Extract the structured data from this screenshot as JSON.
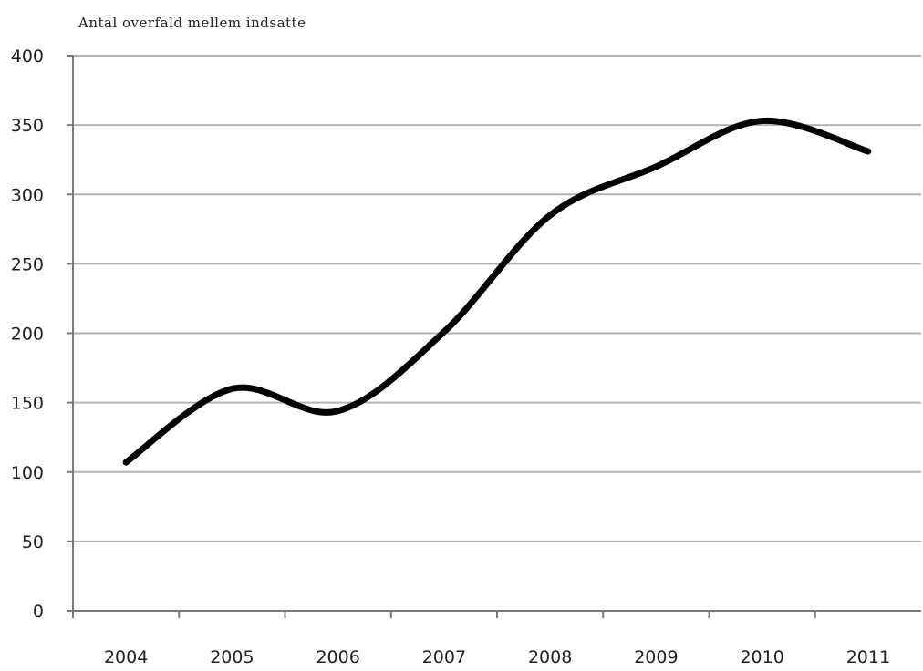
{
  "chart_data": {
    "type": "line",
    "title": "",
    "ylabel": "Antal overfald mellem indsatte",
    "xlabel": "",
    "categories": [
      "2004",
      "2005",
      "2006",
      "2007",
      "2008",
      "2009",
      "2010",
      "2011"
    ],
    "series": [
      {
        "values": [
          107,
          160,
          144,
          201,
          285,
          320,
          353,
          331
        ]
      }
    ],
    "ylim": [
      0,
      400
    ],
    "yticks": [
      "0",
      "50",
      "100",
      "150",
      "200",
      "250",
      "300",
      "350",
      "400"
    ],
    "grid": true,
    "smooth": true,
    "line_color": "#000000",
    "grid_color": "#b3b3b3",
    "axis_color": "#7a7a7a"
  }
}
